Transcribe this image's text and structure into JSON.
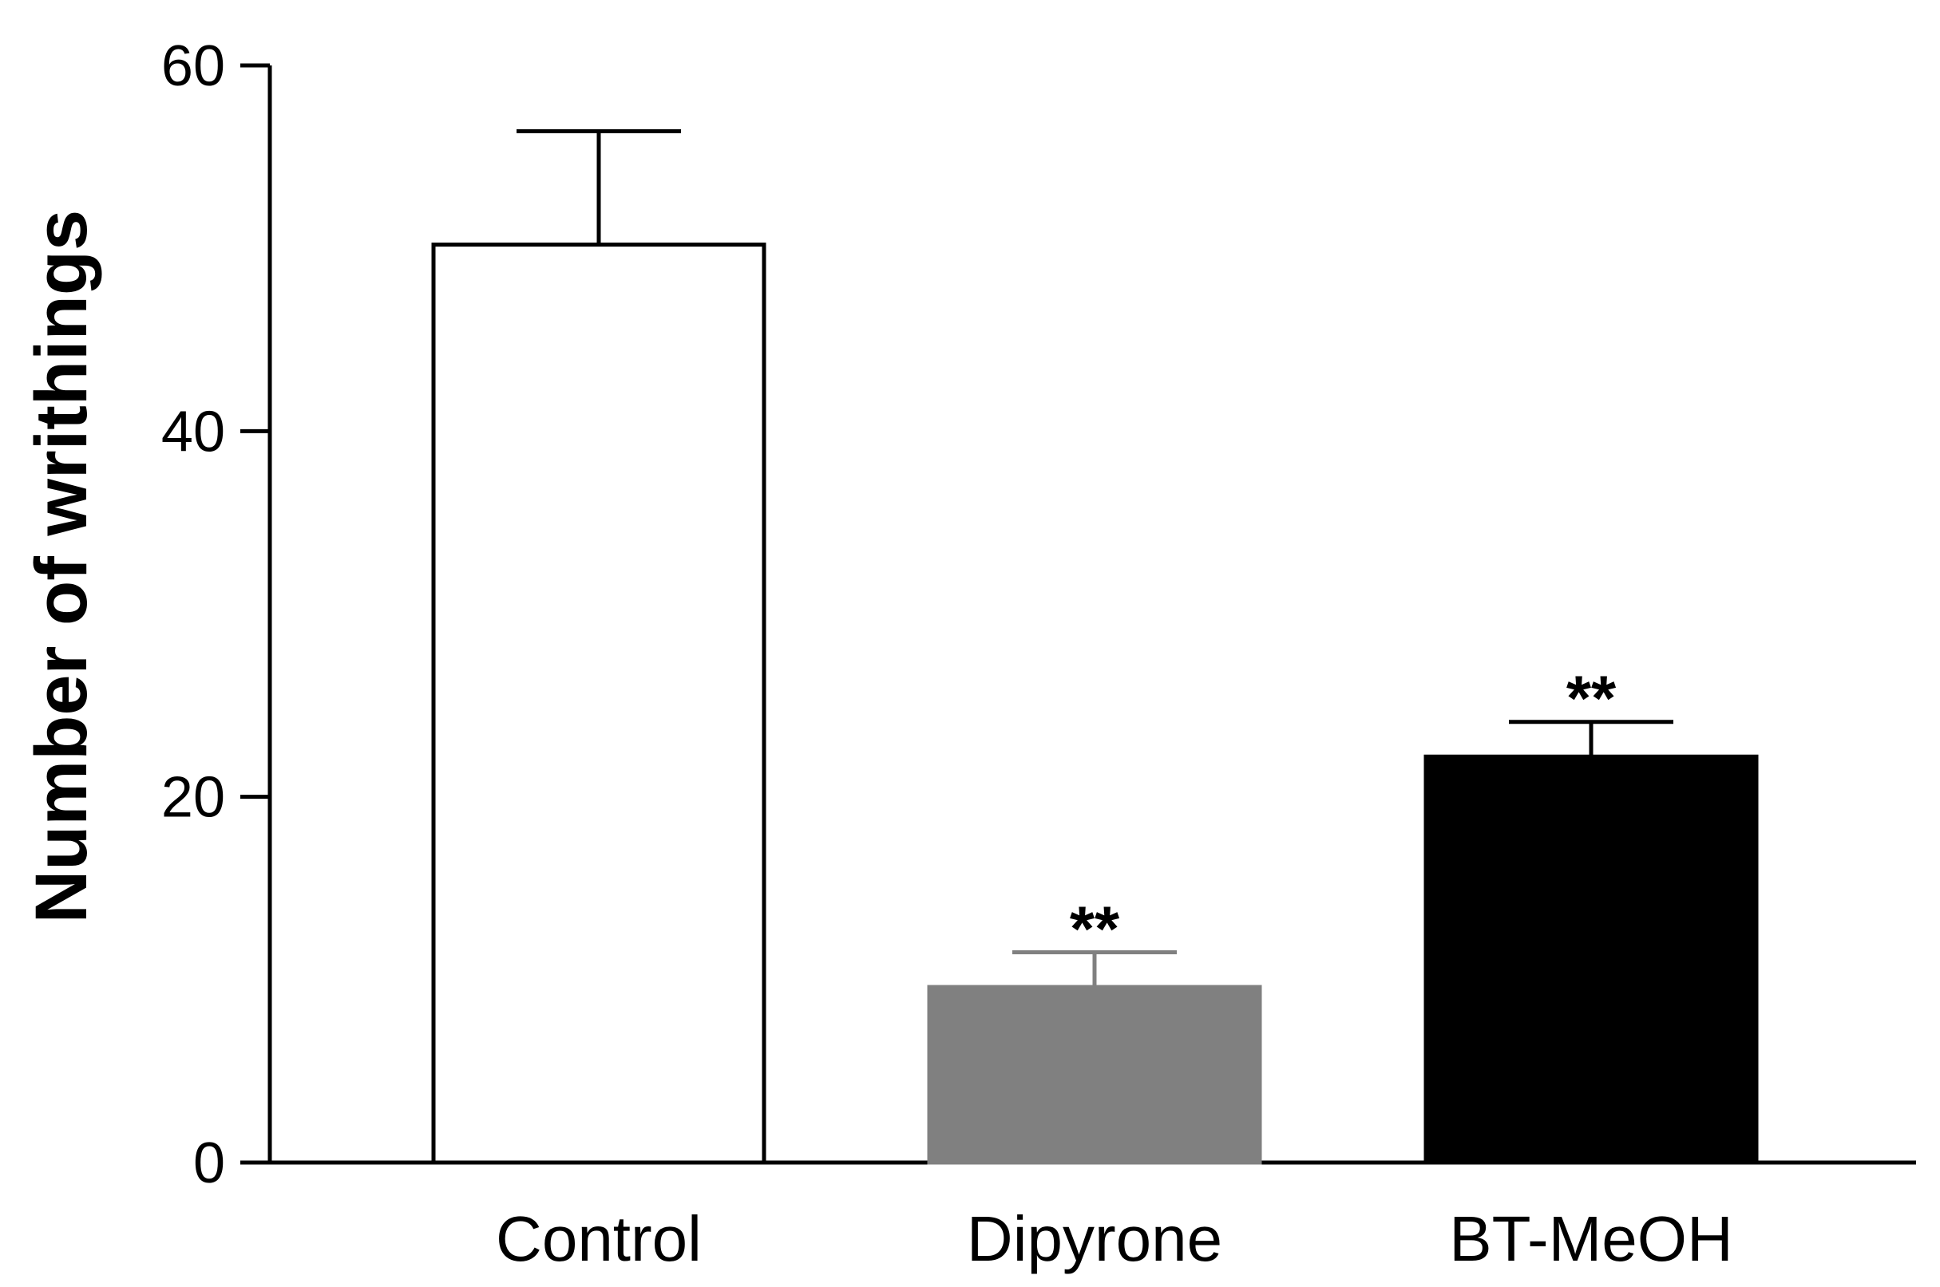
{
  "chart_data": {
    "type": "bar",
    "categories": [
      "Control",
      "Dipyrone",
      "BT-MeOH"
    ],
    "values": [
      50.2,
      9.6,
      22.2
    ],
    "errors": [
      6.2,
      1.9,
      1.9
    ],
    "significance": [
      "",
      "**",
      "**"
    ],
    "bar_colors": [
      "#ffffff",
      "#808080",
      "#000000"
    ],
    "bar_edge_colors": [
      "#000000",
      "#808080",
      "#000000"
    ],
    "error_bar_colors": [
      "#000000",
      "#808080",
      "#000000"
    ],
    "ylabel": "Number of writhings",
    "xlabel": "",
    "ylim": [
      0,
      60
    ],
    "yticks": [
      0,
      20,
      40,
      60
    ],
    "ytick_labels": [
      "0",
      "20",
      "40",
      "60"
    ],
    "grid": false,
    "legend": "none"
  }
}
